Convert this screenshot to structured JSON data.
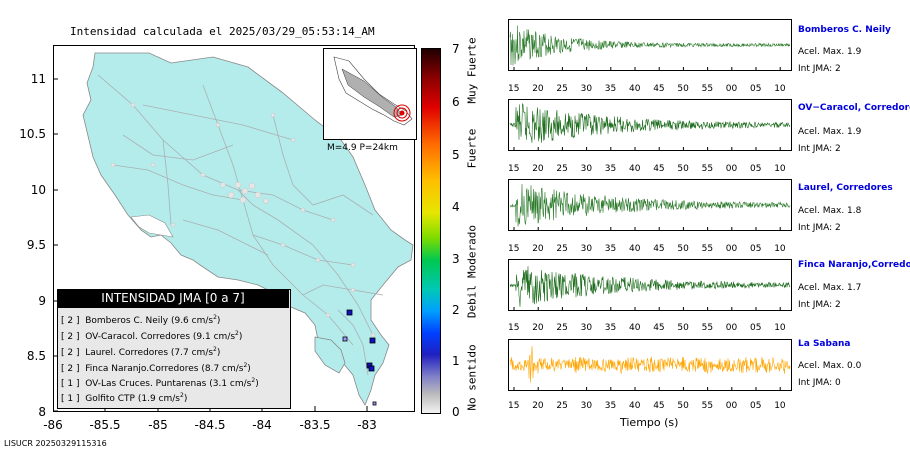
{
  "title": "Intensidad calculada el 2025/03/29_05:53:14_AM",
  "footer": "LISUCR 20250329115316",
  "map": {
    "y_ticks": [
      "11",
      "10.5",
      "10",
      "9.5",
      "9",
      "8.5",
      "8"
    ],
    "x_ticks": [
      "-86",
      "-85.5",
      "-85",
      "-84.5",
      "-84",
      "-83.5",
      "-83"
    ],
    "land_color": "#b4ecec",
    "inset_label": "M=4.9 P=24km"
  },
  "scale": {
    "numbers": [
      "7",
      "6",
      "5",
      "4",
      "3",
      "2",
      "1",
      "0"
    ],
    "categories": [
      "Muy Fuerte",
      "Fuerte",
      "Moderado",
      "Debil",
      "No sentido"
    ]
  },
  "legend": {
    "title": "INTENSIDAD JMA [0 a 7]",
    "rows": [
      {
        "level": "[ 2 ]",
        "station": "Bomberos C. Neily",
        "accel": "(9.6 cm/s",
        "sup": "2",
        "close": ")"
      },
      {
        "level": "[ 2 ]",
        "station": "OV-Caracol. Corredores",
        "accel": "(9.1 cm/s",
        "sup": "2",
        "close": ")"
      },
      {
        "level": "[ 2 ]",
        "station": "Laurel. Corredores",
        "accel": "(7.7 cm/s",
        "sup": "2",
        "close": ")"
      },
      {
        "level": "[ 2 ]",
        "station": "Finca Naranjo.Corredores",
        "accel": "(8.7 cm/s",
        "sup": "2",
        "close": ")"
      },
      {
        "level": "[ 1 ]",
        "station": "OV-Las Cruces. Puntarenas",
        "accel": "(3.1 cm/s",
        "sup": "2",
        "close": ")"
      },
      {
        "level": "[ 1 ]",
        "station": "Golfito CTP",
        "accel": "(1.9 cm/s",
        "sup": "2",
        "close": ")"
      }
    ]
  },
  "chart_data": [
    {
      "type": "map",
      "title": "Intensidad calculada el 2025/03/29_05:53:14_AM",
      "xlim": [
        -86,
        -82.55
      ],
      "ylim": [
        8,
        11.3
      ],
      "x_ticks": [
        -86,
        -85.5,
        -85,
        -84.5,
        -84,
        -83.5,
        -83
      ],
      "y_ticks": [
        8,
        8.5,
        9,
        9.5,
        10,
        10.5,
        11
      ],
      "colorbar": {
        "min": 0,
        "max": 7,
        "ticks": [
          0,
          1,
          2,
          3,
          4,
          5,
          6,
          7
        ],
        "categories": [
          "No sentido",
          "Debil",
          "Moderado",
          "Fuerte",
          "Muy Fuerte"
        ]
      },
      "stations_jma": [
        2,
        2,
        2,
        2,
        1,
        1
      ]
    },
    {
      "type": "line",
      "xlabel": "Tiempo (s)",
      "x_tick_labels": [
        "15",
        "20",
        "25",
        "30",
        "35",
        "40",
        "45",
        "50",
        "55",
        "00",
        "05",
        "10"
      ],
      "series": [
        {
          "name": "Bomberos C. Neily",
          "acel_max": 1.9,
          "int_jma": 2,
          "color": "#2e7d2e"
        },
        {
          "name": "OV−Caracol, Corredores",
          "acel_max": 1.9,
          "int_jma": 2,
          "color": "#1e6e1e"
        },
        {
          "name": "Laurel, Corredores",
          "acel_max": 1.8,
          "int_jma": 2,
          "color": "#2a7a2a"
        },
        {
          "name": "Finca Naranjo,Corredores",
          "acel_max": 1.7,
          "int_jma": 2,
          "color": "#1e6e1e"
        },
        {
          "name": "La Sabana",
          "acel_max": 0.0,
          "int_jma": 0,
          "color": "#ffa500"
        }
      ]
    }
  ],
  "panels": [
    {
      "name": "Bomberos C. Neily",
      "acel": "Acel. Max. 1.9",
      "int": "Int JMA: 2"
    },
    {
      "name": "OV−Caracol, Corredores",
      "acel": "Acel. Max. 1.9",
      "int": "Int JMA: 2"
    },
    {
      "name": "Laurel, Corredores",
      "acel": "Acel. Max. 1.8",
      "int": "Int JMA: 2"
    },
    {
      "name": "Finca Naranjo,Corredores",
      "acel": "Acel. Max. 1.7",
      "int": "Int JMA: 2"
    },
    {
      "name": "La Sabana",
      "acel": "Acel. Max. 0.0",
      "int": "Int JMA: 0"
    }
  ],
  "time_ticks": [
    "15",
    "20",
    "25",
    "30",
    "35",
    "40",
    "45",
    "50",
    "55",
    "00",
    "05",
    "10"
  ],
  "xaxis_title": "Tiempo (s)"
}
